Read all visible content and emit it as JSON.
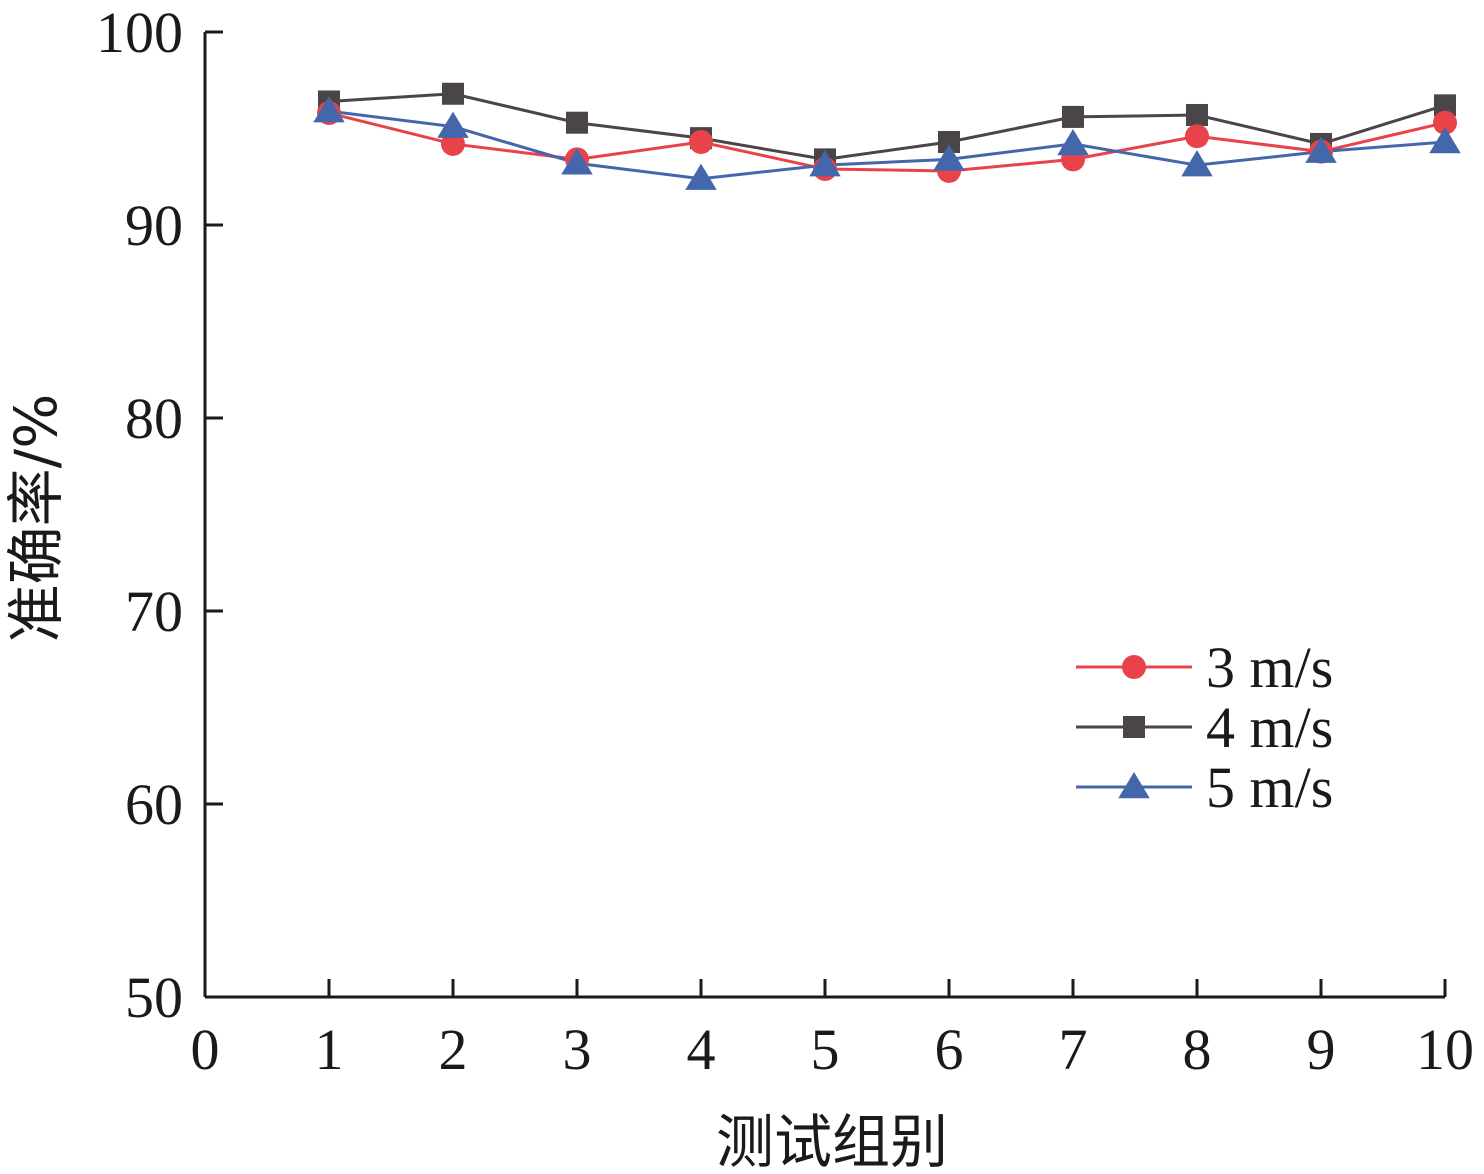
{
  "chart_data": {
    "type": "line",
    "title": "",
    "xlabel": "测试组别",
    "ylabel": "准确率/%",
    "xlim": [
      0,
      10
    ],
    "ylim": [
      50,
      100
    ],
    "x_ticks": [
      "0",
      "1",
      "2",
      "3",
      "4",
      "5",
      "6",
      "7",
      "8",
      "9",
      "10"
    ],
    "y_ticks": [
      "50",
      "60",
      "70",
      "80",
      "90",
      "100"
    ],
    "grid": false,
    "legend_position": "right",
    "x": [
      1,
      2,
      3,
      4,
      5,
      6,
      7,
      8,
      9,
      10
    ],
    "series": [
      {
        "name": "3 m/s",
        "color": "#e8434b",
        "marker": "circle",
        "values": [
          95.8,
          94.2,
          93.4,
          94.3,
          92.9,
          92.8,
          93.4,
          94.6,
          93.8,
          95.3
        ]
      },
      {
        "name": "4 m/s",
        "color": "#4a4546",
        "marker": "square",
        "values": [
          96.4,
          96.8,
          95.3,
          94.5,
          93.4,
          94.3,
          95.6,
          95.7,
          94.2,
          96.2
        ]
      },
      {
        "name": "5 m/s",
        "color": "#4466aa",
        "marker": "triangle",
        "values": [
          95.9,
          95.1,
          93.2,
          92.4,
          93.1,
          93.4,
          94.2,
          93.1,
          93.8,
          94.3
        ]
      }
    ]
  }
}
